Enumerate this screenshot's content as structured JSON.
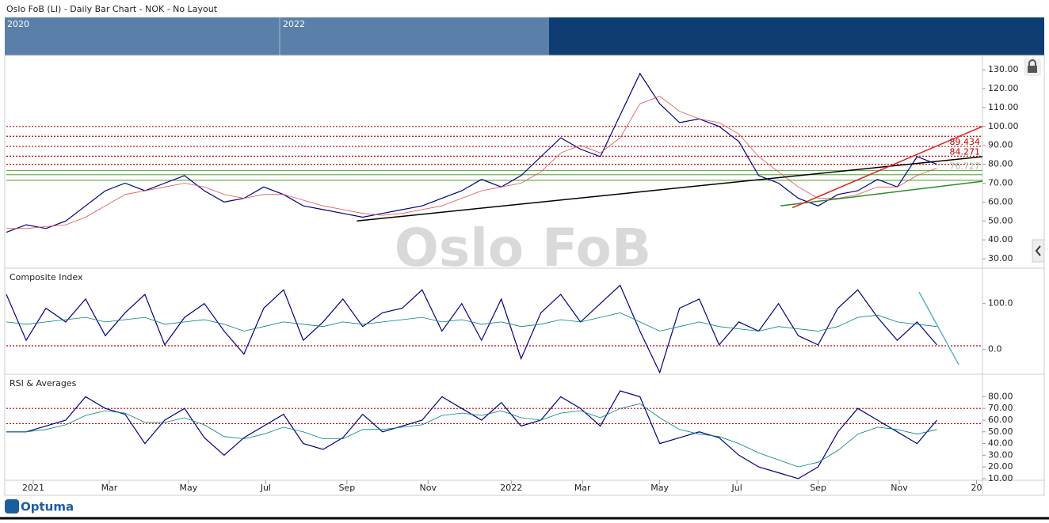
{
  "title": "Oslo FoB (LI) - Daily Bar Chart - NOK - No Layout",
  "overview_labels": [
    "2020",
    "2022"
  ],
  "watermark": "Oslo FoB",
  "logo": "Optuma",
  "xlim": [
    0,
    49.3
  ],
  "xticks": [
    {
      "value": 1.36,
      "label": "2021"
    },
    {
      "value": 5.2,
      "label": "Mar"
    },
    {
      "value": 9.2,
      "label": "May"
    },
    {
      "value": 13.1,
      "label": "Jul"
    },
    {
      "value": 17.2,
      "label": "Sep"
    },
    {
      "value": 21.3,
      "label": "Nov"
    },
    {
      "value": 25.5,
      "label": "2022"
    },
    {
      "value": 29.1,
      "label": "Mar"
    },
    {
      "value": 33,
      "label": "May"
    },
    {
      "value": 36.9,
      "label": "Jul"
    },
    {
      "value": 41,
      "label": "Sep"
    },
    {
      "value": 45.1,
      "label": "Nov"
    },
    {
      "value": 49,
      "label": "20"
    }
  ],
  "chart_data": [
    {
      "type": "line",
      "ylim": [
        25,
        137.6
      ],
      "yticks": [
        {
          "value": 130,
          "label": "130.00"
        },
        {
          "value": 120,
          "label": "120.00"
        },
        {
          "value": 110,
          "label": "110.00"
        },
        {
          "value": 100,
          "label": "100.00"
        },
        {
          "value": 90,
          "label": "90.00"
        },
        {
          "value": 80,
          "label": "80.00"
        },
        {
          "value": 70,
          "label": "70.00"
        },
        {
          "value": 60,
          "label": "60.00"
        },
        {
          "value": 50,
          "label": "50.00"
        },
        {
          "value": 40,
          "label": "40.00"
        },
        {
          "value": 30,
          "label": "30.00"
        }
      ],
      "levels": [
        {
          "value": 100,
          "color": "#c00000",
          "dash": "2,2"
        },
        {
          "value": 94.8,
          "color": "#c00000",
          "dash": "2,2"
        },
        {
          "value": 89.434,
          "color": "#c00000",
          "dash": "2,2"
        },
        {
          "value": 84.271,
          "color": "#c00000",
          "dash": "2,2"
        },
        {
          "value": 80,
          "color": "#c00000",
          "dash": "2,2"
        },
        {
          "value": 76.727,
          "color": "#6ab04c",
          "dash": "none"
        },
        {
          "value": 74.5,
          "color": "#6ab04c",
          "dash": "none"
        },
        {
          "value": 71.5,
          "color": "#6ab04c",
          "dash": "none"
        }
      ],
      "price_labels": [
        {
          "value": 89.434,
          "color": "#c00000"
        },
        {
          "value": 84.271,
          "color": "#c00000"
        },
        {
          "value": 76.727,
          "color": "#9fc29f"
        }
      ],
      "trendlines": [
        {
          "color": "#000000",
          "x": [
            17.7,
            49.3
          ],
          "y": [
            50,
            84
          ]
        },
        {
          "color": "#2e8b2e",
          "x": [
            39.1,
            49.3
          ],
          "y": [
            58,
            71
          ]
        },
        {
          "color": "#e02020",
          "x": [
            39.7,
            49.3
          ],
          "y": [
            57,
            100
          ]
        }
      ],
      "series": [
        {
          "color": "#000080",
          "values": [
            44,
            48,
            46,
            50,
            58,
            66,
            70,
            66,
            70,
            74,
            66,
            60,
            62,
            68,
            64,
            58,
            56,
            54,
            52,
            54,
            56,
            58,
            62,
            66,
            72,
            68,
            74,
            84,
            94,
            88,
            84,
            106,
            128,
            112,
            102,
            104,
            100,
            92,
            74,
            70,
            62,
            58,
            64,
            66,
            72,
            68,
            84,
            80
          ]
        },
        {
          "color": "#e05050",
          "values": [
            46,
            46,
            47,
            48,
            52,
            58,
            64,
            66,
            68,
            70,
            68,
            64,
            62,
            64,
            64,
            61,
            58,
            56,
            54,
            53,
            54,
            56,
            58,
            62,
            66,
            68,
            70,
            76,
            86,
            90,
            86,
            94,
            112,
            116,
            108,
            104,
            102,
            96,
            84,
            76,
            68,
            62,
            62,
            64,
            68,
            68,
            74,
            78
          ]
        }
      ]
    },
    {
      "type": "line",
      "title": "Composite Index",
      "ylim": [
        -54,
        177
      ],
      "yticks": [
        {
          "value": 100,
          "label": "100.0"
        },
        {
          "value": 0,
          "label": "0.0"
        }
      ],
      "levels": [
        {
          "value": 8,
          "color": "#c00000",
          "dash": "2,2"
        }
      ],
      "trendlines": [
        {
          "color": "#5aaecf",
          "x": [
            46.1,
            48.1
          ],
          "y": [
            125,
            -33
          ]
        }
      ],
      "series": [
        {
          "color": "#000080",
          "values": [
            120,
            20,
            90,
            60,
            110,
            30,
            80,
            120,
            10,
            70,
            100,
            40,
            -10,
            90,
            130,
            20,
            60,
            110,
            50,
            80,
            90,
            130,
            40,
            100,
            20,
            110,
            -20,
            80,
            120,
            60,
            100,
            140,
            40,
            -50,
            90,
            110,
            10,
            60,
            40,
            100,
            30,
            10,
            90,
            130,
            70,
            20,
            60,
            10
          ]
        },
        {
          "color": "#008080",
          "values": [
            60,
            55,
            60,
            65,
            70,
            60,
            65,
            70,
            55,
            60,
            65,
            55,
            40,
            50,
            60,
            55,
            50,
            60,
            55,
            60,
            65,
            70,
            60,
            65,
            55,
            60,
            50,
            55,
            65,
            60,
            70,
            80,
            60,
            40,
            50,
            60,
            50,
            45,
            40,
            50,
            45,
            40,
            50,
            70,
            75,
            60,
            55,
            50
          ]
        }
      ]
    },
    {
      "type": "line",
      "title": "RSI & Averages",
      "ylim": [
        8.6,
        99.2
      ],
      "yticks": [
        {
          "value": 80,
          "label": "80.00"
        },
        {
          "value": 70,
          "label": "70.00"
        },
        {
          "value": 60,
          "label": "60.00"
        },
        {
          "value": 50,
          "label": "50.00"
        },
        {
          "value": 40,
          "label": "40.00"
        },
        {
          "value": 30,
          "label": "30.00"
        },
        {
          "value": 20,
          "label": "20.00"
        },
        {
          "value": 10,
          "label": "10.00"
        }
      ],
      "levels": [
        {
          "value": 70,
          "color": "#c00000",
          "dash": "2,2"
        },
        {
          "value": 57,
          "color": "#c00000",
          "dash": "2,2"
        }
      ],
      "series": [
        {
          "color": "#000080",
          "values": [
            50,
            50,
            55,
            60,
            80,
            70,
            65,
            40,
            60,
            70,
            45,
            30,
            45,
            55,
            65,
            40,
            35,
            45,
            65,
            50,
            55,
            60,
            80,
            70,
            60,
            75,
            55,
            60,
            80,
            70,
            55,
            85,
            80,
            40,
            45,
            50,
            45,
            30,
            20,
            15,
            10,
            20,
            50,
            70,
            60,
            50,
            40,
            60
          ]
        },
        {
          "color": "#008080",
          "values": [
            50,
            50,
            52,
            56,
            64,
            68,
            66,
            58,
            58,
            62,
            56,
            46,
            44,
            48,
            54,
            50,
            44,
            44,
            52,
            52,
            54,
            56,
            64,
            66,
            64,
            68,
            62,
            60,
            66,
            68,
            62,
            70,
            74,
            62,
            52,
            48,
            46,
            40,
            32,
            26,
            20,
            24,
            34,
            48,
            54,
            52,
            48,
            52
          ]
        }
      ]
    }
  ]
}
